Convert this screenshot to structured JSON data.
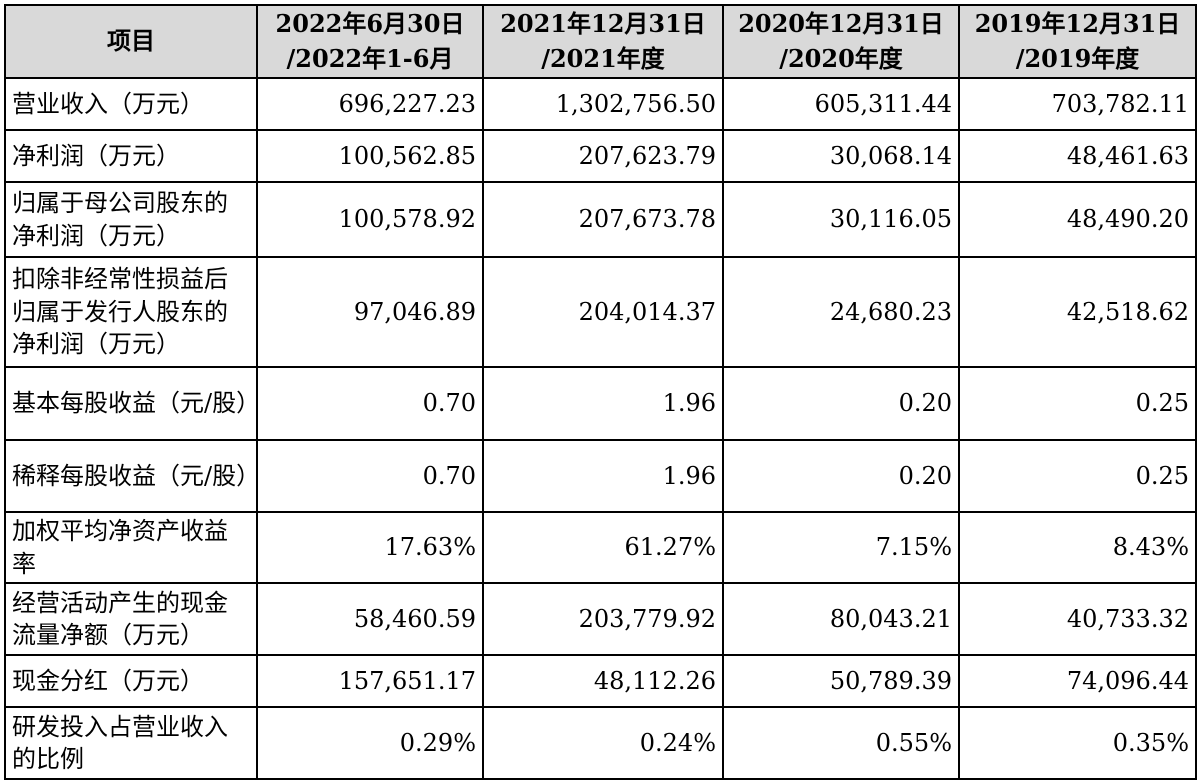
{
  "table": {
    "header": {
      "item": "项目",
      "columns": [
        {
          "line1": "2022年6月30日",
          "line2": "/2022年1-6月"
        },
        {
          "line1": "2021年12月31日",
          "line2": "/2021年度"
        },
        {
          "line1": "2020年12月31日",
          "line2": "/2020年度"
        },
        {
          "line1": "2019年12月31日",
          "line2": "/2019年度"
        }
      ]
    },
    "rows": [
      {
        "label": "营业收入（万元）",
        "values": [
          "696,227.23",
          "1,302,756.50",
          "605,311.44",
          "703,782.11"
        ]
      },
      {
        "label": "净利润（万元）",
        "values": [
          "100,562.85",
          "207,623.79",
          "30,068.14",
          "48,461.63"
        ]
      },
      {
        "label": "归属于母公司股东的净利润（万元）",
        "values": [
          "100,578.92",
          "207,673.78",
          "30,116.05",
          "48,490.20"
        ]
      },
      {
        "label": "扣除非经常性损益后归属于发行人股东的净利润（万元）",
        "values": [
          "97,046.89",
          "204,014.37",
          "24,680.23",
          "42,518.62"
        ]
      },
      {
        "label": "基本每股收益（元/股）",
        "values": [
          "0.70",
          "1.96",
          "0.20",
          "0.25"
        ]
      },
      {
        "label": "稀释每股收益（元/股）",
        "values": [
          "0.70",
          "1.96",
          "0.20",
          "0.25"
        ]
      },
      {
        "label": "加权平均净资产收益率",
        "values": [
          "17.63%",
          "61.27%",
          "7.15%",
          "8.43%"
        ]
      },
      {
        "label": "经营活动产生的现金流量净额（万元）",
        "values": [
          "58,460.59",
          "203,779.92",
          "80,043.21",
          "40,733.32"
        ]
      },
      {
        "label": "现金分红（万元）",
        "values": [
          "157,651.17",
          "48,112.26",
          "50,789.39",
          "74,096.44"
        ]
      },
      {
        "label": "研发投入占营业收入的比例",
        "values": [
          "0.29%",
          "0.24%",
          "0.55%",
          "0.35%"
        ]
      }
    ]
  }
}
